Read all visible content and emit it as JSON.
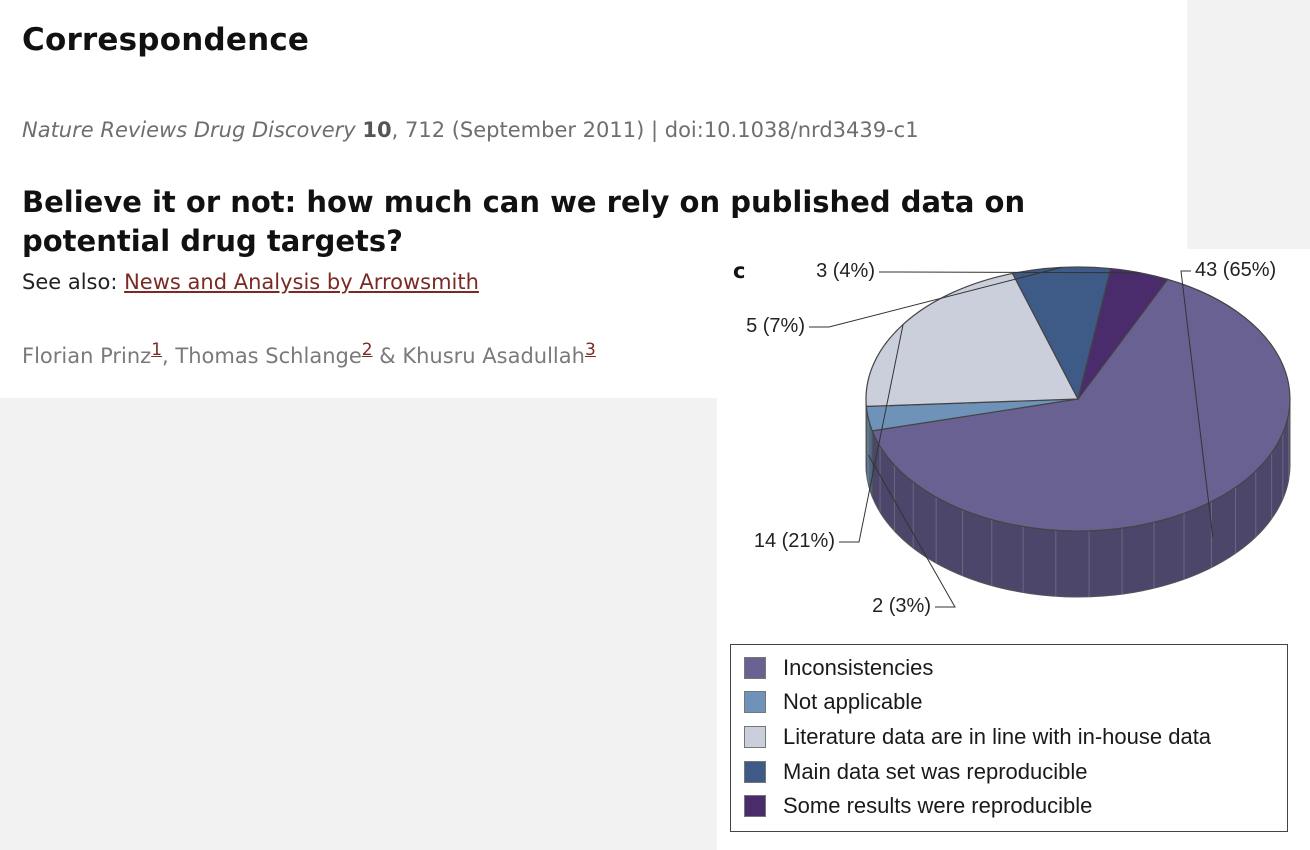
{
  "article": {
    "section_title": "Correspondence",
    "citation": {
      "journal": "Nature Reviews Drug Discovery",
      "volume": "10",
      "pages_date": ", 712 (September 2011) | doi:10.1038/nrd3439-c1"
    },
    "headline": "Believe it or not: how much can we rely on published data on potential drug targets?",
    "see_also_label": "See also: ",
    "see_also_link": "News and Analysis by Arrowsmith",
    "authors": [
      {
        "name": "Florian Prinz",
        "ref": "1",
        "sep": ", "
      },
      {
        "name": "Thomas Schlange",
        "ref": "2",
        "sep": " & "
      },
      {
        "name": "Khusru Asadullah",
        "ref": "3",
        "sep": ""
      }
    ]
  },
  "chart_data": {
    "type": "pie",
    "panel_label": "c",
    "three_d": true,
    "slices": [
      {
        "name": "Inconsistencies",
        "count": 43,
        "percent": 65,
        "label": "43 (65%)",
        "color": "#6a6193"
      },
      {
        "name": "Not applicable",
        "count": 2,
        "percent": 3,
        "label": "2 (3%)",
        "color": "#6f93b8"
      },
      {
        "name": "Literature data are in line with in-house data",
        "count": 14,
        "percent": 21,
        "label": "14 (21%)",
        "color": "#cbcfdc"
      },
      {
        "name": "Main data set was reproducible",
        "count": 5,
        "percent": 7,
        "label": "5 (7%)",
        "color": "#3e5a86"
      },
      {
        "name": "Some results were reproducible",
        "count": 3,
        "percent": 4,
        "label": "3 (4%)",
        "color": "#4a2b6c"
      }
    ],
    "legend_position": "bottom"
  }
}
